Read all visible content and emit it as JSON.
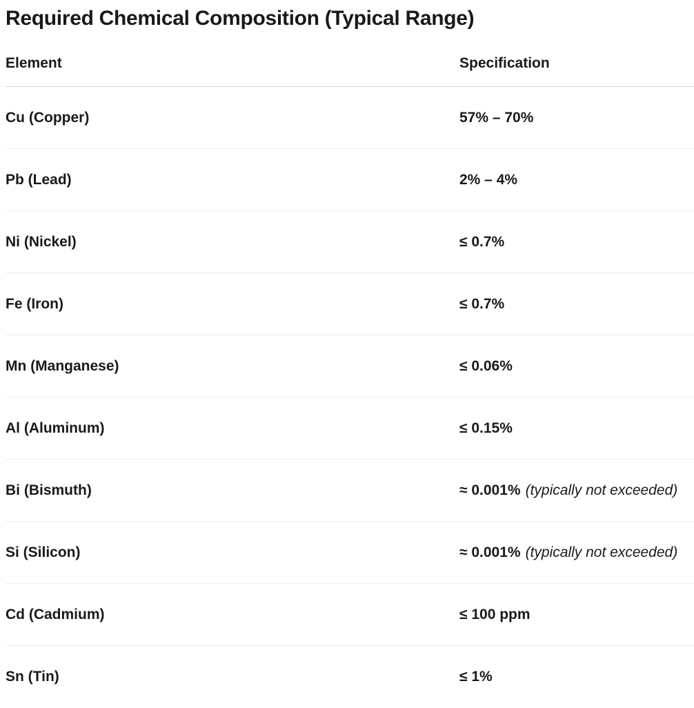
{
  "title": "Required Chemical Composition (Typical Range)",
  "colors": {
    "text": "#191919",
    "header_divider": "#d4d4d4",
    "row_divider": "#ededed",
    "background": "#ffffff"
  },
  "table": {
    "columns": [
      "Element",
      "Specification"
    ],
    "rows": [
      {
        "element": "Cu (Copper)",
        "spec": "57% – 70%",
        "note": ""
      },
      {
        "element": "Pb (Lead)",
        "spec": "2% – 4%",
        "note": ""
      },
      {
        "element": "Ni (Nickel)",
        "spec": "≤ 0.7%",
        "note": ""
      },
      {
        "element": "Fe (Iron)",
        "spec": "≤ 0.7%",
        "note": ""
      },
      {
        "element": "Mn (Manganese)",
        "spec": "≤ 0.06%",
        "note": ""
      },
      {
        "element": "Al (Aluminum)",
        "spec": "≤ 0.15%",
        "note": ""
      },
      {
        "element": "Bi (Bismuth)",
        "spec": "≈ 0.001%",
        "note": "(typically not exceeded)"
      },
      {
        "element": "Si (Silicon)",
        "spec": "≈ 0.001%",
        "note": "(typically not exceeded)"
      },
      {
        "element": "Cd (Cadmium)",
        "spec": "≤ 100 ppm",
        "note": ""
      },
      {
        "element": "Sn (Tin)",
        "spec": "≤ 1%",
        "note": ""
      }
    ]
  }
}
